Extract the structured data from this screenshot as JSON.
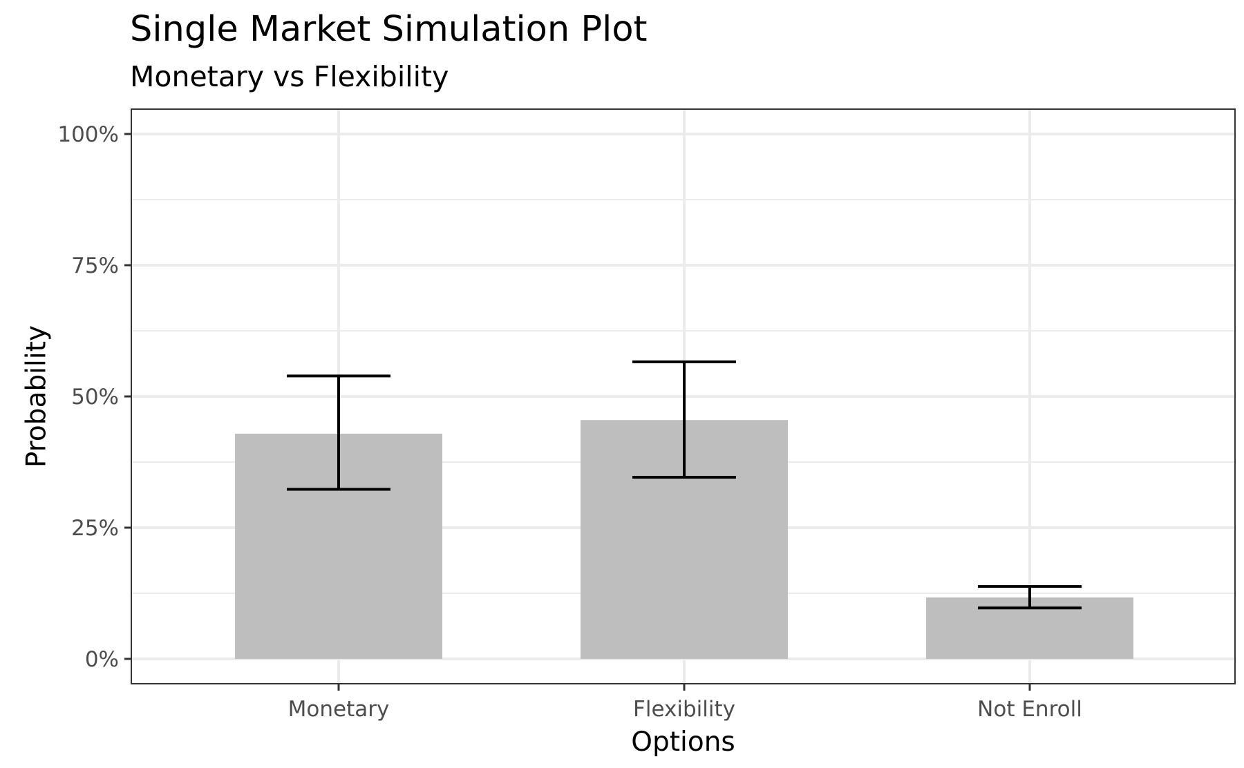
{
  "chart_data": {
    "type": "bar",
    "title": "Single Market Simulation Plot",
    "subtitle": "Monetary vs Flexibility",
    "xlabel": "Options",
    "ylabel": "Probability",
    "categories": [
      "Monetary",
      "Flexibility",
      "Not Enroll"
    ],
    "values": [
      0.429,
      0.455,
      0.117
    ],
    "error_low": [
      0.323,
      0.346,
      0.097
    ],
    "error_high": [
      0.539,
      0.566,
      0.138
    ],
    "ylim": [
      0,
      1
    ],
    "yticks": [
      0,
      0.25,
      0.5,
      0.75,
      1
    ],
    "ytick_labels": [
      "0%",
      "25%",
      "50%",
      "75%",
      "100%"
    ],
    "grid": true,
    "colors": {
      "bar": "#bebebe",
      "errorbar": "#000000",
      "grid": "#ebebeb",
      "panel_border": "#333333",
      "tick_text": "#4d4d4d"
    }
  }
}
